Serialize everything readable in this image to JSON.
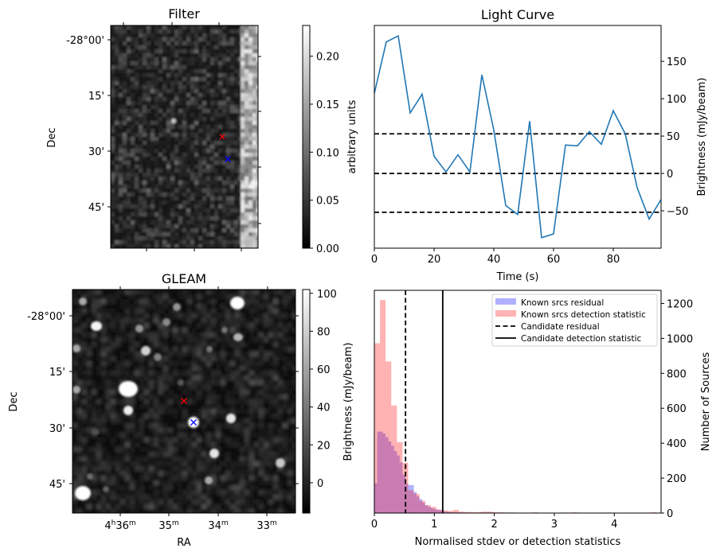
{
  "figure": {
    "panels": [
      "Filter",
      "Light Curve",
      "GLEAM",
      "Histogram"
    ]
  },
  "chart_data": [
    {
      "id": "filter",
      "type": "heatmap",
      "title": "Filter",
      "xlabel": "",
      "ylabel": "Dec",
      "ytick_labels": [
        "-28°00'",
        "15'",
        "30'",
        "45'"
      ],
      "colorbar": {
        "label": "arbitrary units",
        "range": [
          0.0,
          0.232
        ],
        "ticks": [
          "0.00",
          "0.05",
          "0.10",
          "0.15",
          "0.20"
        ],
        "tick_values": [
          0.0,
          0.05,
          0.1,
          0.15,
          0.2
        ],
        "colormap": "gray"
      },
      "markers": [
        {
          "name": "candidate",
          "symbol": "x",
          "color": "#ff0000"
        },
        {
          "name": "gleam-source",
          "symbol": "x",
          "color": "#0000ff"
        }
      ]
    },
    {
      "id": "light-curve",
      "type": "line",
      "title": "Light Curve",
      "xlabel": "Time (s)",
      "ylabel": "Brightness (mJy/beam)",
      "xlim": [
        0,
        96
      ],
      "ylim": [
        -100,
        198
      ],
      "xticks": [
        0,
        20,
        40,
        60,
        80
      ],
      "yticks": [
        -50,
        0,
        50,
        100,
        150
      ],
      "ytick_labels": [
        "−50",
        "0",
        "50",
        "100",
        "150"
      ],
      "yaxis_side": "right",
      "series": [
        {
          "name": "light curve",
          "color": "#1f77b4",
          "x": [
            0,
            4,
            8,
            12,
            16,
            20,
            24,
            28,
            32,
            36,
            40,
            44,
            48,
            52,
            56,
            60,
            64,
            68,
            72,
            76,
            80,
            84,
            88,
            92,
            96
          ],
          "y": [
            107,
            176,
            184,
            81,
            106,
            23,
            2,
            25,
            2,
            132,
            58,
            -43,
            -55,
            70,
            -86,
            -81,
            38,
            37,
            56,
            39,
            84,
            53,
            -19,
            -61,
            -35
          ]
        }
      ],
      "hlines": [
        {
          "y": 53,
          "style": "dashed",
          "color": "#000000"
        },
        {
          "y": 0,
          "style": "dashed",
          "color": "#000000"
        },
        {
          "y": -52,
          "style": "dashed",
          "color": "#000000"
        }
      ]
    },
    {
      "id": "gleam",
      "type": "heatmap",
      "title": "GLEAM",
      "xlabel": "RA",
      "ylabel": "Dec",
      "xtick_labels": [
        {
          "base": "4",
          "sup1": "h",
          "mid": "36",
          "sup2": "m"
        },
        {
          "base": "",
          "sup1": "",
          "mid": "35",
          "sup2": "m"
        },
        {
          "base": "",
          "sup1": "",
          "mid": "34",
          "sup2": "m"
        },
        {
          "base": "",
          "sup1": "",
          "mid": "33",
          "sup2": "m"
        }
      ],
      "ytick_labels": [
        "-28°00'",
        "15'",
        "30'",
        "45'"
      ],
      "colorbar": {
        "label": "Brightness (mJy/beam)",
        "range": [
          -16,
          102
        ],
        "ticks": [
          "0",
          "20",
          "40",
          "60",
          "80",
          "100"
        ],
        "tick_values": [
          0,
          20,
          40,
          60,
          80,
          100
        ],
        "colormap": "gray"
      },
      "markers": [
        {
          "name": "candidate",
          "symbol": "x",
          "color": "#ff0000"
        },
        {
          "name": "gleam-source",
          "symbol": "x",
          "color": "#0000ff"
        }
      ]
    },
    {
      "id": "histogram",
      "type": "bar",
      "title": "",
      "xlabel": "Normalised stdev or detection statistics",
      "ylabel": "Number of Sources",
      "xlim": [
        0,
        4.78
      ],
      "ylim": [
        0,
        1275
      ],
      "xticks": [
        0,
        1,
        2,
        3,
        4
      ],
      "yticks": [
        0,
        200,
        400,
        600,
        800,
        1000,
        1200
      ],
      "yaxis_side": "right",
      "legend_position": "top-right",
      "series": [
        {
          "name": "Known srcs residual",
          "color": "#0000ff",
          "alpha": 0.3,
          "bin_start": 0.0,
          "bin_width": 0.047,
          "counts": [
            170,
            466,
            466,
            455,
            435,
            410,
            385,
            355,
            330,
            290,
            220,
            168,
            160,
            160,
            120,
            95,
            80,
            60,
            45,
            35,
            28,
            22,
            20,
            15,
            12,
            8,
            6,
            5,
            4,
            4,
            3,
            3,
            3,
            2,
            2,
            2,
            2,
            2,
            3,
            2,
            3,
            3,
            2,
            2,
            2,
            2,
            2,
            2,
            3,
            1
          ]
        },
        {
          "name": "Known srcs detection statistic",
          "color": "#ff0000",
          "alpha": 0.3,
          "bin_start": 0.0,
          "bin_width": 0.094,
          "counts": [
            972,
            1219,
            868,
            616,
            406,
            288,
            130,
            110,
            70,
            45,
            35,
            20,
            15,
            12,
            18,
            8,
            6,
            6,
            5,
            8,
            8,
            5,
            4,
            3,
            3,
            2,
            2,
            0,
            4,
            0,
            0,
            0,
            0,
            3,
            0,
            4,
            0,
            0,
            0,
            0,
            0,
            3,
            0,
            0,
            0,
            0,
            0,
            0,
            0,
            4,
            0,
            0,
            0,
            0,
            4,
            0,
            3,
            0,
            0,
            0,
            0,
            0,
            0,
            0,
            0,
            0,
            0,
            0,
            3,
            0,
            0,
            0,
            0,
            0,
            0,
            0,
            0,
            0,
            0,
            0
          ]
        }
      ],
      "vlines": [
        {
          "name": "Candidate residual",
          "x": 0.52,
          "style": "dashed",
          "color": "#000000"
        },
        {
          "name": "Candidate detection statistic",
          "x": 1.14,
          "style": "solid",
          "color": "#000000"
        }
      ],
      "legend": [
        {
          "label": "Known srcs residual",
          "kind": "patch",
          "color": "#b0b0ff"
        },
        {
          "label": "Known srcs detection statistic",
          "kind": "patch",
          "color": "#ffb3b3"
        },
        {
          "label": "Candidate residual",
          "kind": "dashed-line",
          "color": "#000000"
        },
        {
          "label": "Candidate detection statistic",
          "kind": "solid-line",
          "color": "#000000"
        }
      ]
    }
  ]
}
